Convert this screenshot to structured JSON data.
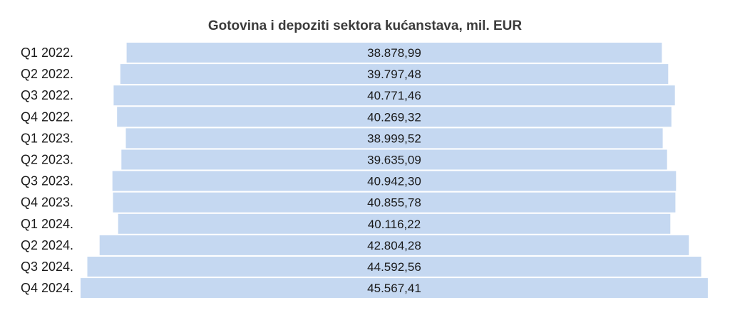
{
  "chart_data": {
    "type": "bar",
    "orientation": "horizontal-centered",
    "title": "Gotovina i depoziti sektora kućanstava, mil. EUR",
    "categories": [
      "Q1 2022.",
      "Q2 2022.",
      "Q3 2022.",
      "Q4 2022.",
      "Q1 2023.",
      "Q2 2023.",
      "Q3 2023.",
      "Q4 2023.",
      "Q1 2024.",
      "Q2 2024.",
      "Q3 2024.",
      "Q4 2024."
    ],
    "values": [
      38878.99,
      39797.48,
      40771.46,
      40269.32,
      38999.52,
      39635.09,
      40942.3,
      40855.78,
      40116.22,
      42804.28,
      44592.56,
      45567.41
    ],
    "value_labels": [
      "38.878,99",
      "39.797,48",
      "40.771,46",
      "40.269,32",
      "38.999,52",
      "39.635,09",
      "40.942,30",
      "40.855,78",
      "40.116,22",
      "42.804,28",
      "44.592,56",
      "45.567,41"
    ],
    "bar_color": "#c5d8f1",
    "legend": "none",
    "grid": false
  }
}
